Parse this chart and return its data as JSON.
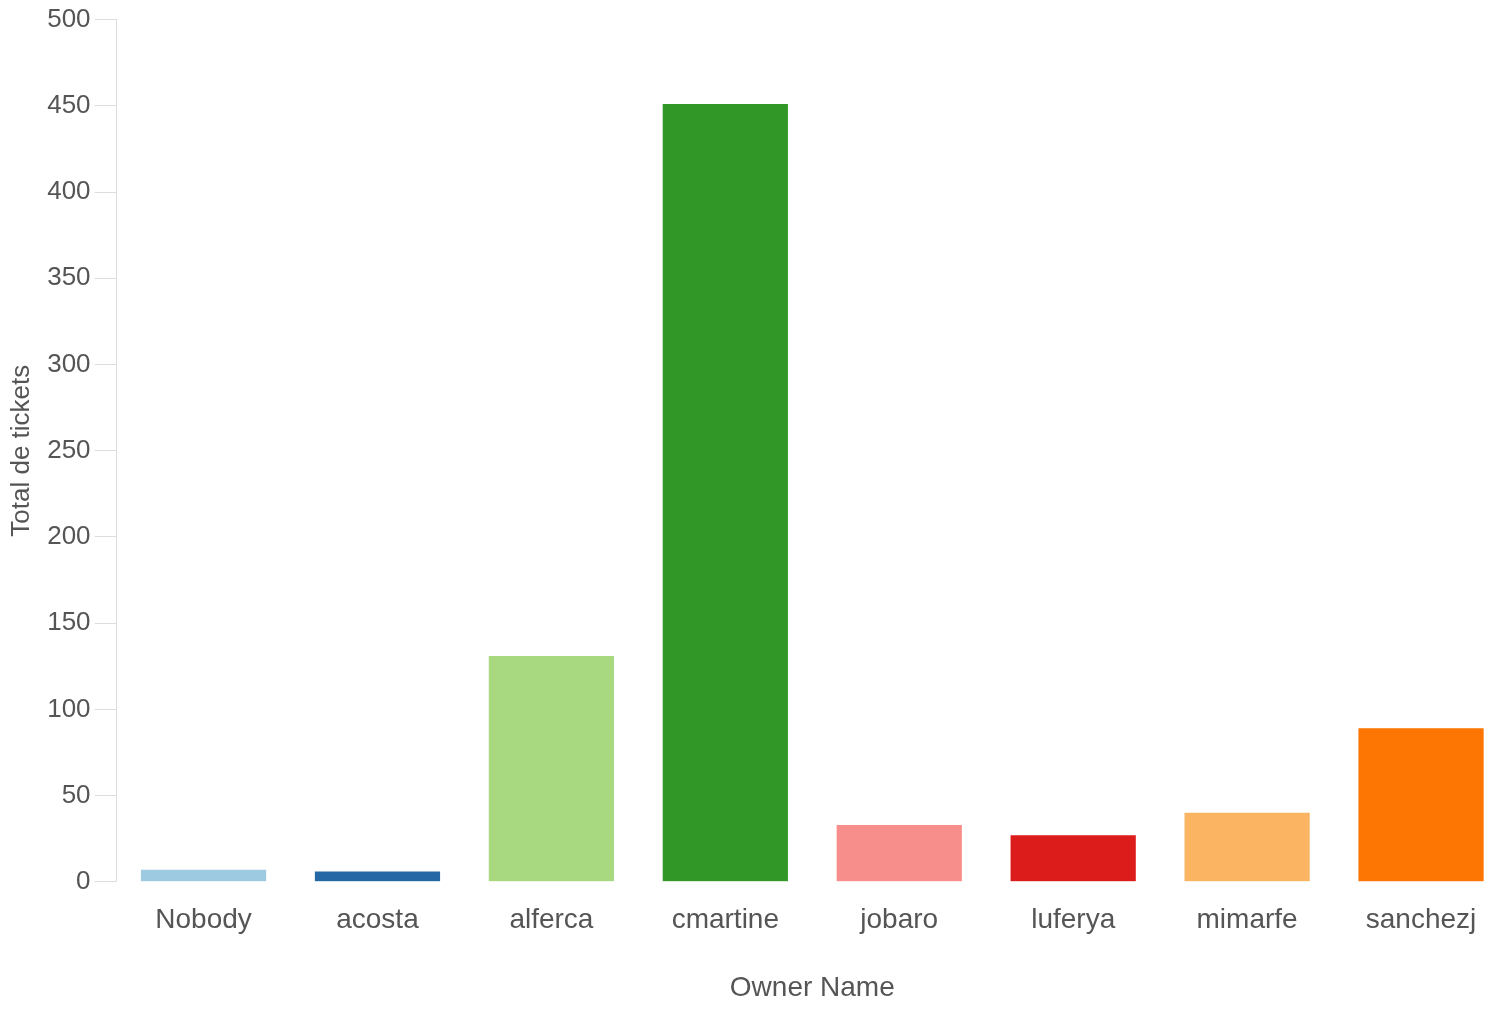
{
  "chart_data": {
    "type": "bar",
    "xlabel": "Owner Name",
    "ylabel": "Total de tickets",
    "categories": [
      "Nobody",
      "acosta",
      "alferca",
      "cmartine",
      "jobaro",
      "luferya",
      "mimarfe",
      "sanchezj"
    ],
    "values": [
      7,
      6,
      131,
      451,
      33,
      27,
      40,
      89
    ],
    "colors": [
      "#9ecae1",
      "#2469a6",
      "#a8d880",
      "#319828",
      "#f88e8c",
      "#dc1b1b",
      "#fbb462",
      "#fd7503"
    ],
    "ylim": [
      0,
      500
    ],
    "yticks": [
      0,
      50,
      100,
      150,
      200,
      250,
      300,
      350,
      400,
      450,
      500
    ],
    "grid": false,
    "legend": false
  }
}
